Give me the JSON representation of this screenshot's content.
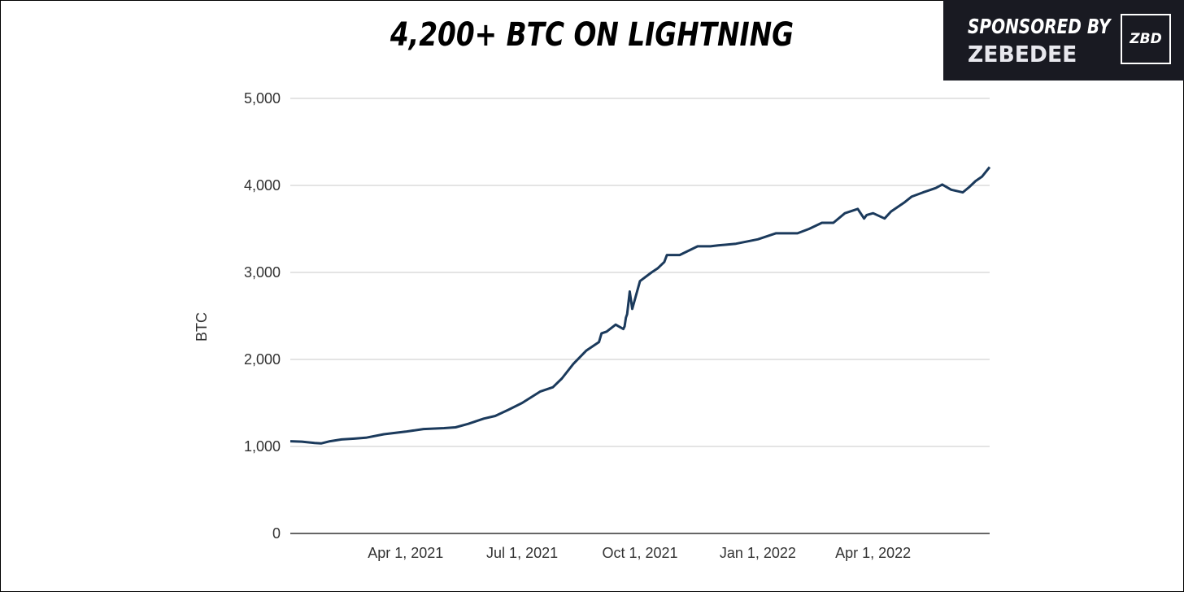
{
  "header": {
    "title": "4,200+ BTC ON LIGHTNING",
    "sponsor_line1": "SPONSORED BY",
    "sponsor_line2": "ZEBEDEE",
    "sponsor_badge": "ZBD"
  },
  "colors": {
    "line": "#1b3a5c",
    "grid": "#c8c8c8",
    "sponsor_bg": "#191a22"
  },
  "chart_data": {
    "type": "line",
    "title": "4,200+ BTC ON LIGHTNING",
    "xlabel": "",
    "ylabel": "BTC",
    "x_tick_labels": [
      "Apr 1, 2021",
      "Jul 1, 2021",
      "Oct 1, 2021",
      "Jan 1, 2022",
      "Apr 1, 2022"
    ],
    "y_tick_labels": [
      "0",
      "1,000",
      "2,000",
      "3,000",
      "4,000",
      "5,000"
    ],
    "ylim": [
      0,
      5000
    ],
    "xlim": [
      "2021-01-01",
      "2022-07-01"
    ],
    "grid": true,
    "legend": "none",
    "series": [
      {
        "x": [
          "2021-01-01",
          "2021-01-10",
          "2021-01-20",
          "2021-01-25",
          "2021-02-01",
          "2021-02-10",
          "2021-02-20",
          "2021-03-01",
          "2021-03-15",
          "2021-04-01",
          "2021-04-15",
          "2021-05-01",
          "2021-05-10",
          "2021-05-20",
          "2021-06-01",
          "2021-06-10",
          "2021-06-20",
          "2021-07-01",
          "2021-07-15",
          "2021-07-25",
          "2021-08-01",
          "2021-08-10",
          "2021-08-20",
          "2021-08-30",
          "2021-09-01",
          "2021-09-05",
          "2021-09-12",
          "2021-09-18",
          "2021-09-19",
          "2021-09-20",
          "2021-09-21",
          "2021-09-23",
          "2021-09-25",
          "2021-10-01",
          "2021-10-10",
          "2021-10-15",
          "2021-10-20",
          "2021-10-22",
          "2021-11-01",
          "2021-11-15",
          "2021-11-25",
          "2021-12-01",
          "2021-12-15",
          "2022-01-01",
          "2022-01-15",
          "2022-02-01",
          "2022-02-10",
          "2022-02-20",
          "2022-03-01",
          "2022-03-10",
          "2022-03-20",
          "2022-03-25",
          "2022-03-27",
          "2022-04-01",
          "2022-04-10",
          "2022-04-15",
          "2022-04-25",
          "2022-05-01",
          "2022-05-10",
          "2022-05-20",
          "2022-05-25",
          "2022-06-01",
          "2022-06-10",
          "2022-06-15",
          "2022-06-20",
          "2022-06-25",
          "2022-07-01"
        ],
        "values": [
          1060,
          1055,
          1040,
          1035,
          1060,
          1080,
          1090,
          1100,
          1140,
          1170,
          1200,
          1210,
          1220,
          1260,
          1320,
          1350,
          1420,
          1500,
          1630,
          1680,
          1780,
          1950,
          2100,
          2200,
          2300,
          2320,
          2400,
          2350,
          2380,
          2480,
          2520,
          2780,
          2580,
          2900,
          3000,
          3050,
          3120,
          3200,
          3200,
          3300,
          3300,
          3310,
          3330,
          3380,
          3450,
          3450,
          3500,
          3570,
          3570,
          3680,
          3730,
          3620,
          3660,
          3680,
          3620,
          3700,
          3800,
          3870,
          3920,
          3970,
          4010,
          3950,
          3920,
          3980,
          4050,
          4100,
          4210
        ]
      }
    ]
  }
}
